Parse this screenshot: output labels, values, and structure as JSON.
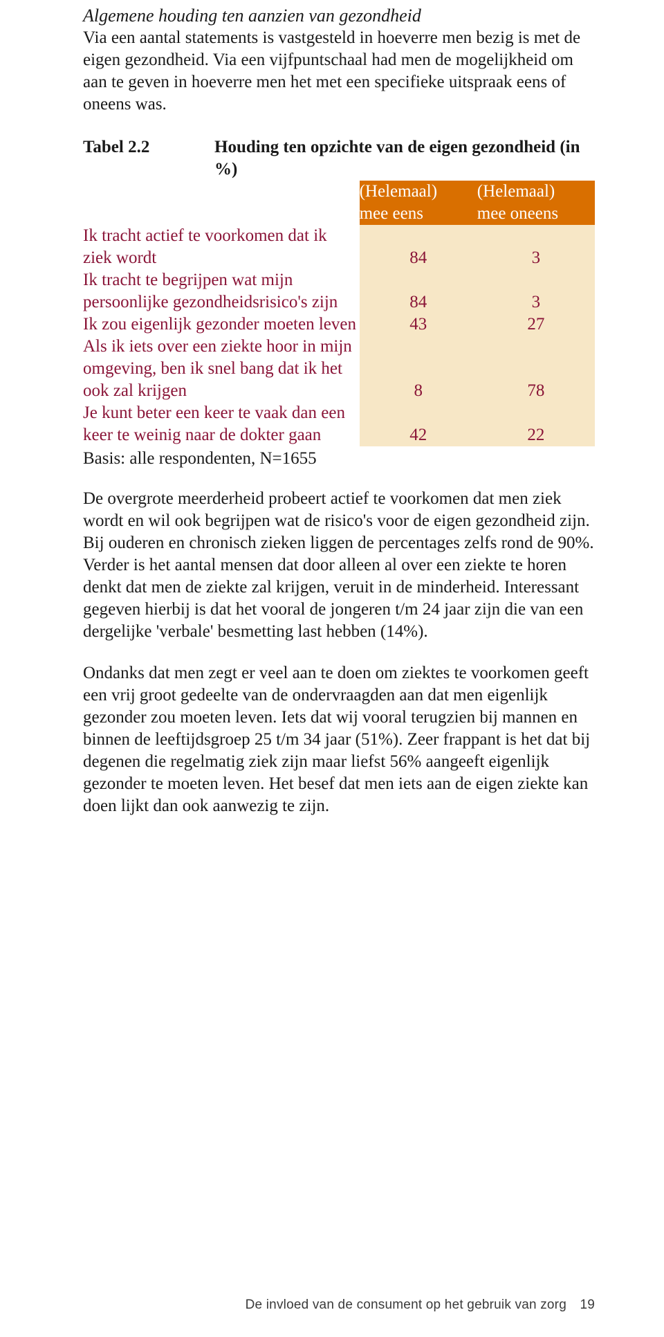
{
  "colors": {
    "text": "#1a1a1a",
    "statement_text": "#8a1538",
    "header_bg": "#d96f00",
    "header_text": "#ffffff",
    "cell_bg": "#f7e7c6",
    "page_bg": "#ffffff"
  },
  "heading": "Algemene houding ten aanzien van gezondheid",
  "intro": "Via een aantal statements is vastgesteld in hoeverre men bezig is met de eigen gezondheid. Via een vijfpuntschaal had men de mogelijkheid om aan te geven in hoeverre men het met een specifieke uitspraak eens of oneens was.",
  "table": {
    "label": "Tabel 2.2",
    "title": "Houding ten opzichte van de eigen gezondheid (in %)",
    "columns": {
      "agree_line1": "(Helemaal)",
      "agree_line2": "mee eens",
      "disagree_line1": "(Helemaal)",
      "disagree_line2": "mee oneens"
    },
    "rows": [
      {
        "statement": "Ik tracht actief te voorkomen dat ik ziek wordt",
        "agree": 84,
        "disagree": 3
      },
      {
        "statement": "Ik tracht te begrijpen wat mijn persoonlijke gezondheidsrisico's zijn",
        "agree": 84,
        "disagree": 3
      },
      {
        "statement": "Ik zou eigenlijk gezonder moeten leven",
        "agree": 43,
        "disagree": 27
      },
      {
        "statement": "Als ik iets over een ziekte hoor in mijn omgeving, ben ik snel bang dat ik het ook zal krijgen",
        "agree": 8,
        "disagree": 78
      },
      {
        "statement": "Je kunt beter een keer te vaak dan een keer te weinig naar de dokter gaan",
        "agree": 42,
        "disagree": 22
      }
    ],
    "basis": "Basis: alle respondenten, N=1655"
  },
  "para1": "De overgrote meerderheid probeert actief te voorkomen dat men ziek wordt en wil ook begrijpen wat de risico's voor de eigen gezondheid zijn. Bij ouderen en chronisch zieken liggen de percentages zelfs rond de 90%. Verder is het aantal mensen dat door alleen al over een ziekte te horen denkt dat men de ziekte zal krijgen, veruit in de minderheid. Interessant gegeven hierbij is dat het vooral de jongeren t/m 24 jaar zijn die van een dergelijke 'verbale' besmetting last hebben (14%).",
  "para2": "Ondanks dat men zegt er veel aan te doen om ziektes te voorkomen geeft een vrij groot gedeelte van de ondervraagden aan dat men eigenlijk gezonder zou moeten leven. Iets dat wij vooral terugzien bij mannen en binnen de leeftijdsgroep 25 t/m 34 jaar (51%). Zeer frappant is het dat bij degenen die regelmatig ziek zijn maar liefst 56% aangeeft eigenlijk gezonder te moeten leven. Het besef dat men iets aan de eigen ziekte kan doen lijkt dan ook aanwezig te zijn.",
  "footer": {
    "text": "De invloed van de consument op het gebruik van zorg",
    "page": "19"
  }
}
